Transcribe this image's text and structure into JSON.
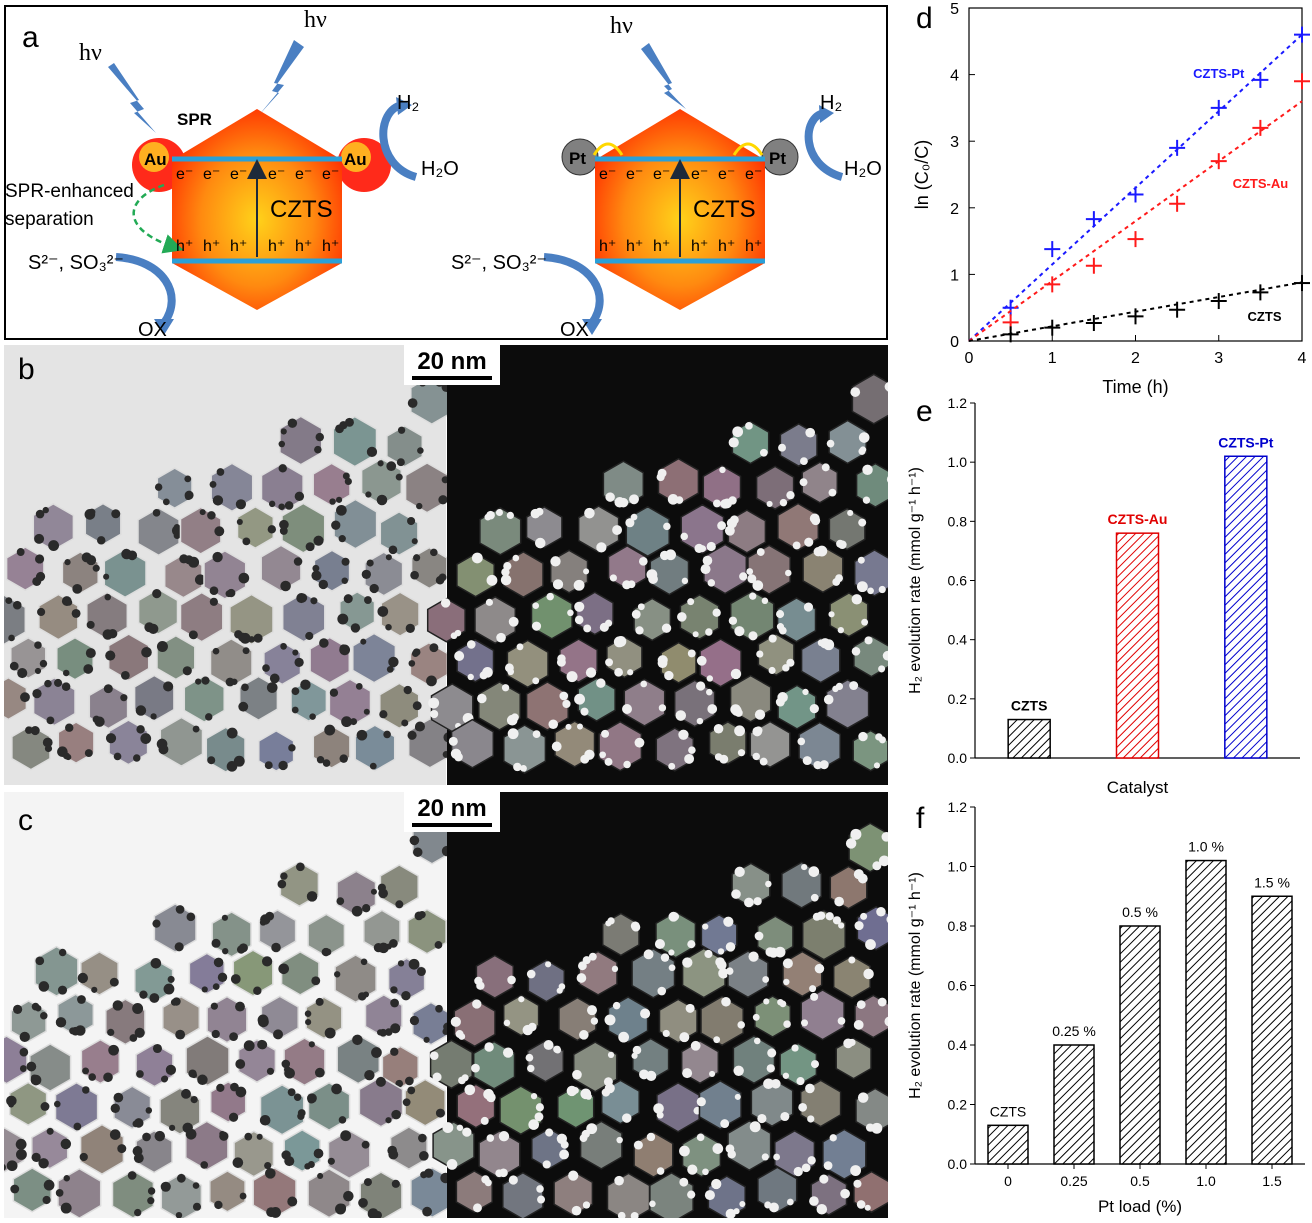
{
  "panel_a": {
    "label": "a",
    "hv": "hν",
    "spr": "SPR",
    "au": "Au",
    "pt": "Pt",
    "electron": "e⁻",
    "hole": "h⁺",
    "czts": "CZTS",
    "h2": "H₂",
    "h2o": "H₂O",
    "spr_sep_line1": "SPR-enhanced",
    "spr_sep_line2": "separation",
    "sulfide": "S²⁻, SO₃²⁻",
    "ox": "OX"
  },
  "panel_b": {
    "label": "b",
    "scale": "20 nm"
  },
  "panel_c": {
    "label": "c",
    "scale": "20 nm"
  },
  "chart_data": [
    {
      "panel": "d",
      "type": "scatter",
      "xlabel": "Time (h)",
      "ylabel": "ln (C₀/C)",
      "xlim": [
        0,
        4
      ],
      "ylim": [
        0,
        5
      ],
      "xticks": [
        0,
        1,
        2,
        3,
        4
      ],
      "yticks": [
        0,
        1,
        2,
        3,
        4,
        5
      ],
      "series": [
        {
          "name": "CZTS-Pt",
          "color": "#1a1aff",
          "x": [
            0.5,
            1,
            1.5,
            2,
            2.5,
            3,
            3.5,
            4
          ],
          "y": [
            0.5,
            1.38,
            1.83,
            2.2,
            2.9,
            3.5,
            3.92,
            4.6
          ],
          "fit": [
            [
              0,
              0
            ],
            [
              4,
              4.6
            ]
          ]
        },
        {
          "name": "CZTS-Au",
          "color": "#ff1a1a",
          "x": [
            0.5,
            1,
            1.5,
            2,
            2.5,
            3,
            3.5,
            4
          ],
          "y": [
            0.28,
            0.85,
            1.13,
            1.53,
            2.06,
            2.7,
            3.2,
            3.9
          ],
          "fit": [
            [
              0,
              0
            ],
            [
              4,
              3.6
            ]
          ]
        },
        {
          "name": "CZTS",
          "color": "#000000",
          "x": [
            0.5,
            1,
            1.5,
            2,
            2.5,
            3,
            3.5,
            4
          ],
          "y": [
            0.1,
            0.2,
            0.27,
            0.37,
            0.47,
            0.6,
            0.73,
            0.87
          ],
          "fit": [
            [
              0,
              0
            ],
            [
              4,
              0.88
            ]
          ]
        }
      ]
    },
    {
      "panel": "e",
      "type": "bar",
      "xlabel": "Catalyst",
      "ylabel": "H₂ evolution rate (mmol g⁻¹ h⁻¹)",
      "ylim": [
        0,
        1.2
      ],
      "yticks": [
        "0.0",
        "0.2",
        "0.4",
        "0.6",
        "0.8",
        "1.0",
        "1.2"
      ],
      "categories": [
        "CZTS",
        "CZTS-Au",
        "CZTS-Pt"
      ],
      "values": [
        0.13,
        0.76,
        1.02
      ],
      "colors": [
        "#000000",
        "#e00000",
        "#0000cc"
      ]
    },
    {
      "panel": "f",
      "type": "bar",
      "xlabel": "Pt load (%)",
      "ylabel": "H₂ evolution rate (mmol g⁻¹ h⁻¹)",
      "ylim": [
        0,
        1.2
      ],
      "yticks": [
        "0.0",
        "0.2",
        "0.4",
        "0.6",
        "0.8",
        "1.0",
        "1.2"
      ],
      "categories": [
        "0",
        "0.25",
        "0.5",
        "1.0",
        "1.5"
      ],
      "values": [
        0.13,
        0.4,
        0.8,
        1.02,
        0.9
      ],
      "bar_labels": [
        "CZTS",
        "0.25 %",
        "0.5 %",
        "1.0 %",
        "1.5 %"
      ]
    }
  ]
}
